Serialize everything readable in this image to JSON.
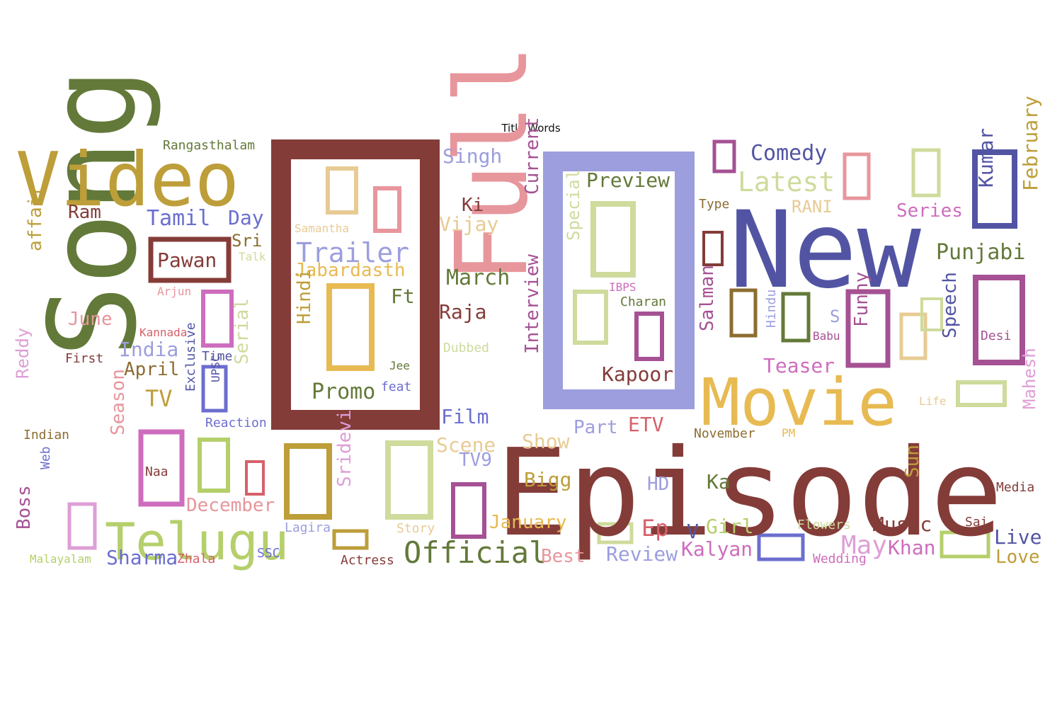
{
  "title": "Title Words",
  "palette": {
    "maroon": "#843c39",
    "olive": "#637939",
    "gold": "#bd9e39",
    "indigo": "#5254a3",
    "lilac": "#9c9ede",
    "pink": "#e7969c",
    "sand": "#e7ba52",
    "sage": "#cedb9c",
    "orchid": "#ce6dbd",
    "plum": "#a55194",
    "periwinkle": "#6b6ecf",
    "lime": "#b5cf6b",
    "brown": "#8c6d31",
    "tan": "#e7cb94",
    "rose": "#de9ed6",
    "red": "#d6616b"
  },
  "words": [
    {
      "text": "Episode",
      "color": "#843c39"
    },
    {
      "text": "Song",
      "color": "#637939"
    },
    {
      "text": "New",
      "color": "#5254a3"
    },
    {
      "text": "Video",
      "color": "#bd9e39"
    },
    {
      "text": "Full",
      "color": "#e7969c"
    },
    {
      "text": "Movie",
      "color": "#e7ba52"
    },
    {
      "text": "Telugu",
      "color": "#b5cf6b"
    },
    {
      "text": "Official",
      "color": "#637939"
    },
    {
      "text": "Trailer",
      "color": "#9c9ede"
    },
    {
      "text": "Comedy",
      "color": "#5254a3"
    },
    {
      "text": "Latest",
      "color": "#cedb9c"
    },
    {
      "text": "Preview",
      "color": "#637939"
    },
    {
      "text": "Singh",
      "color": "#9c9ede"
    },
    {
      "text": "Tamil",
      "color": "#6b6ecf"
    },
    {
      "text": "Day",
      "color": "#6b6ecf"
    },
    {
      "text": "Ram",
      "color": "#843c39"
    },
    {
      "text": "Pawan",
      "color": "#843c39"
    },
    {
      "text": "affair",
      "color": "#bd9e39"
    },
    {
      "text": "Rangasthalam",
      "color": "#637939"
    },
    {
      "text": "Sri",
      "color": "#8c6d31"
    },
    {
      "text": "Talk",
      "color": "#cedb9c"
    },
    {
      "text": "Jabardasth",
      "color": "#e7ba52"
    },
    {
      "text": "Samantha",
      "color": "#e7cb94"
    },
    {
      "text": "Ki",
      "color": "#843c39"
    },
    {
      "text": "Vijay",
      "color": "#e7cb94"
    },
    {
      "text": "March",
      "color": "#637939"
    },
    {
      "text": "Ft",
      "color": "#637939"
    },
    {
      "text": "Raja",
      "color": "#843c39"
    },
    {
      "text": "Hindi",
      "color": "#bd9e39"
    },
    {
      "text": "Promo",
      "color": "#637939"
    },
    {
      "text": "feat",
      "color": "#6b6ecf"
    },
    {
      "text": "Jee",
      "color": "#637939"
    },
    {
      "text": "Current",
      "color": "#a55194"
    },
    {
      "text": "Interview",
      "color": "#a55194"
    },
    {
      "text": "Special",
      "color": "#cedb9c"
    },
    {
      "text": "Kapoor",
      "color": "#843c39"
    },
    {
      "text": "IBPS",
      "color": "#ce6dbd"
    },
    {
      "text": "Charan",
      "color": "#637939"
    },
    {
      "text": "Type",
      "color": "#8c6d31"
    },
    {
      "text": "RANI",
      "color": "#e7cb94"
    },
    {
      "text": "Series",
      "color": "#ce6dbd"
    },
    {
      "text": "Kumar",
      "color": "#5254a3"
    },
    {
      "text": "February",
      "color": "#bd9e39"
    },
    {
      "text": "Punjabi",
      "color": "#637939"
    },
    {
      "text": "Salman",
      "color": "#a55194"
    },
    {
      "text": "Hindu",
      "color": "#9c9ede"
    },
    {
      "text": "S",
      "color": "#9c9ede"
    },
    {
      "text": "Funny",
      "color": "#a55194"
    },
    {
      "text": "Speech",
      "color": "#5254a3"
    },
    {
      "text": "Babu",
      "color": "#a55194"
    },
    {
      "text": "Desi",
      "color": "#a55194"
    },
    {
      "text": "Teaser",
      "color": "#ce6dbd"
    },
    {
      "text": "Mahesh",
      "color": "#de9ed6"
    },
    {
      "text": "Life",
      "color": "#e7cb94"
    },
    {
      "text": "November",
      "color": "#8c6d31"
    },
    {
      "text": "PM",
      "color": "#e7ba52"
    },
    {
      "text": "Sun",
      "color": "#bd9e39"
    },
    {
      "text": "Media",
      "color": "#843c39"
    },
    {
      "text": "Music",
      "color": "#843c39"
    },
    {
      "text": "Sai",
      "color": "#843c39"
    },
    {
      "text": "Live",
      "color": "#5254a3"
    },
    {
      "text": "Love",
      "color": "#bd9e39"
    },
    {
      "text": "Khan",
      "color": "#ce6dbd"
    },
    {
      "text": "May",
      "color": "#de9ed6"
    },
    {
      "text": "Flowers",
      "color": "#cedb9c"
    },
    {
      "text": "Wedding",
      "color": "#ce6dbd"
    },
    {
      "text": "Kalyan",
      "color": "#ce6dbd"
    },
    {
      "text": "Girl",
      "color": "#b5cf6b"
    },
    {
      "text": "Ka",
      "color": "#637939"
    },
    {
      "text": "V",
      "color": "#5254a3"
    },
    {
      "text": "Review",
      "color": "#9c9ede"
    },
    {
      "text": "Ep",
      "color": "#d6616b"
    },
    {
      "text": "HD",
      "color": "#9c9ede"
    },
    {
      "text": "ETV",
      "color": "#d6616b"
    },
    {
      "text": "Part",
      "color": "#9c9ede"
    },
    {
      "text": "Show",
      "color": "#e7cb94"
    },
    {
      "text": "Bigg",
      "color": "#bd9e39"
    },
    {
      "text": "January",
      "color": "#e7ba52"
    },
    {
      "text": "Best",
      "color": "#e7969c"
    },
    {
      "text": "Film",
      "color": "#6b6ecf"
    },
    {
      "text": "Scene",
      "color": "#e7cb94"
    },
    {
      "text": "TV9",
      "color": "#9c9ede"
    },
    {
      "text": "Dubbed",
      "color": "#cedb9c"
    },
    {
      "text": "Story",
      "color": "#e7cb94"
    },
    {
      "text": "Actress",
      "color": "#843c39"
    },
    {
      "text": "Sridevi",
      "color": "#de9ed6"
    },
    {
      "text": "Lagira",
      "color": "#9c9ede"
    },
    {
      "text": "SSC",
      "color": "#6b6ecf"
    },
    {
      "text": "Zhala",
      "color": "#d6616b"
    },
    {
      "text": "Sharma",
      "color": "#6b6ecf"
    },
    {
      "text": "Malayalam",
      "color": "#b5cf6b"
    },
    {
      "text": "Boss",
      "color": "#a55194"
    },
    {
      "text": "Web",
      "color": "#6b6ecf"
    },
    {
      "text": "Indian",
      "color": "#8c6d31"
    },
    {
      "text": "Naa",
      "color": "#843c39"
    },
    {
      "text": "December",
      "color": "#e7969c"
    },
    {
      "text": "Season",
      "color": "#e7969c"
    },
    {
      "text": "Reaction",
      "color": "#6b6ecf"
    },
    {
      "text": "Exclusive",
      "color": "#5254a3"
    },
    {
      "text": "UPSC",
      "color": "#5254a3"
    },
    {
      "text": "Time",
      "color": "#5254a3"
    },
    {
      "text": "Serial",
      "color": "#cedb9c"
    },
    {
      "text": "TV",
      "color": "#bd9e39"
    },
    {
      "text": "April",
      "color": "#8c6d31"
    },
    {
      "text": "India",
      "color": "#9c9ede"
    },
    {
      "text": "Reddy",
      "color": "#de9ed6"
    },
    {
      "text": "First",
      "color": "#843c39"
    },
    {
      "text": "June",
      "color": "#e7969c"
    },
    {
      "text": "Kannada",
      "color": "#d6616b"
    },
    {
      "text": "Arjun",
      "color": "#e7969c"
    }
  ]
}
